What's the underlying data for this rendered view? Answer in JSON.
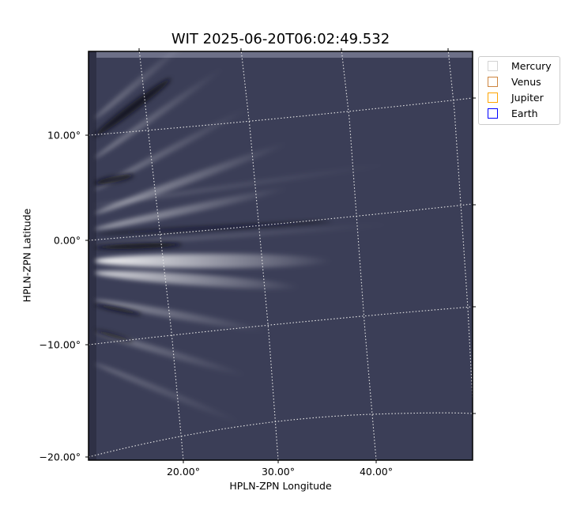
{
  "chart_data": {
    "type": "heatmap",
    "title": "WIT 2025-06-20T06:02:49.532",
    "xlabel": "HPLN-ZPN Longitude",
    "ylabel": "HPLN-ZPN Latitude",
    "x_ticks": [
      "20.00°",
      "30.00°",
      "40.00°"
    ],
    "y_ticks": [
      "10.00°",
      "0.00°",
      "−10.00°",
      "−20.00°"
    ],
    "colormap": "bone",
    "grid": true,
    "legend_position": "outside-top-right",
    "legend": [
      {
        "name": "Mercury",
        "color": "#d3d3d3"
      },
      {
        "name": "Venus",
        "color": "#cd853f"
      },
      {
        "name": "Jupiter",
        "color": "#ffa500"
      },
      {
        "name": "Earth",
        "color": "#0000ff"
      }
    ]
  }
}
